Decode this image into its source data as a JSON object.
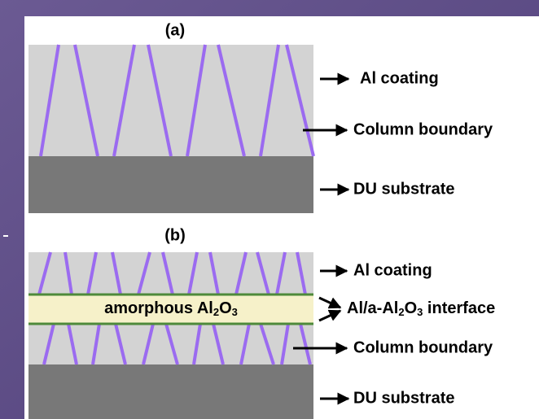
{
  "panel_a": {
    "label": "(a)",
    "annotations": [
      "Al coating",
      "Column boundary",
      "DU substrate"
    ]
  },
  "panel_b": {
    "label": "(b)",
    "layer_text": [
      "amorphous Al",
      "2",
      "O",
      "3"
    ],
    "annotations": [
      "Al coating",
      "Column boundary",
      "DU substrate"
    ],
    "interface": [
      "Al/a-Al",
      "2",
      "O",
      "3",
      " interface"
    ]
  }
}
